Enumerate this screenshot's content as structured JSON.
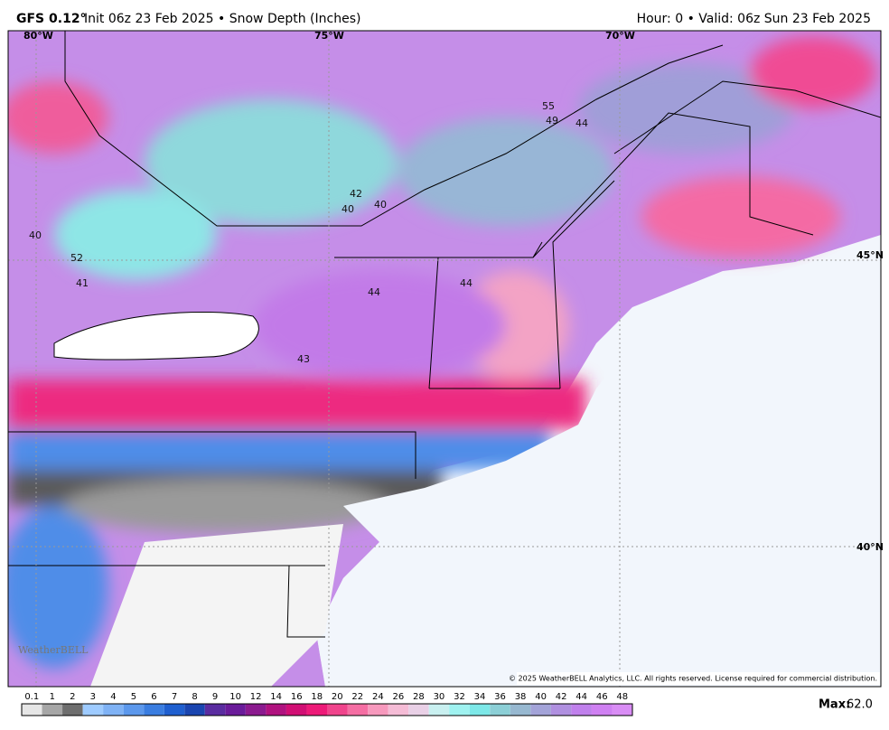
{
  "header": {
    "model": "GFS 0.12°",
    "run": "Init 06z 23 Feb 2025 • Snow Depth (Inches)",
    "valid": "Hour: 0 • Valid: 06z Sun 23 Feb 2025"
  },
  "graticule": [
    "80°W",
    "75°W",
    "70°W",
    "45°N",
    "40°N"
  ],
  "point_values": [
    "55",
    "49",
    "44",
    "42",
    "40",
    "40",
    "40",
    "52",
    "41",
    "44",
    "44",
    "43"
  ],
  "logo": "WeatherBELL",
  "copyright": "© 2025 WeatherBELL Analytics, LLC. All rights reserved. License required for commercial distribution.",
  "legend": {
    "labels": [
      "0.1",
      "1",
      "2",
      "3",
      "4",
      "5",
      "6",
      "7",
      "8",
      "9",
      "10",
      "12",
      "14",
      "16",
      "18",
      "20",
      "22",
      "24",
      "26",
      "28",
      "30",
      "32",
      "34",
      "36",
      "38",
      "40",
      "42",
      "44",
      "46",
      "48"
    ],
    "colors": [
      "#e6e6e6",
      "#a6a6a6",
      "#6e6e6e",
      "#9ecbff",
      "#7fb2f5",
      "#5c98ec",
      "#3a7de0",
      "#1f5fcf",
      "#1a45b0",
      "#5a2ca0",
      "#6a1b9a",
      "#8b1a8f",
      "#b0127f",
      "#d10f74",
      "#ed1a78",
      "#f0448c",
      "#f56ea3",
      "#f799bd",
      "#f5bcd6",
      "#e9d0e6",
      "#c9f0f0",
      "#9ff2f0",
      "#7de8e8",
      "#8ccfd6",
      "#97b8d0",
      "#a3a3d8",
      "#b090e0",
      "#c080ec",
      "#cf80f2",
      "#d98df5"
    ]
  },
  "max": {
    "label": "Max:",
    "value": "62.0"
  }
}
